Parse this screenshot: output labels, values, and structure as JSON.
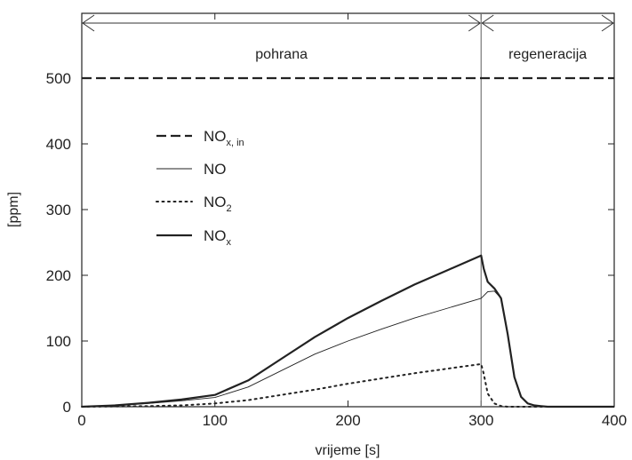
{
  "chart_data": {
    "type": "line",
    "xlabel": "vrijeme [s]",
    "ylabel": "[ppm]",
    "xlim": [
      0,
      400
    ],
    "ylim": [
      0,
      500
    ],
    "xticks": [
      0,
      100,
      200,
      300,
      400
    ],
    "yticks": [
      0,
      100,
      200,
      300,
      400,
      500
    ],
    "grid": false,
    "legend_position": "upper-left",
    "phases": [
      {
        "label": "pohrana",
        "start": 0,
        "end": 300
      },
      {
        "label": "regeneracija",
        "start": 300,
        "end": 400
      }
    ],
    "series": [
      {
        "name": "NOx, in",
        "legend_main": "NO",
        "legend_sub": "x, in",
        "style": "dashed",
        "x": [
          0,
          400
        ],
        "y": [
          500,
          500
        ]
      },
      {
        "name": "NO",
        "legend_main": "NO",
        "legend_sub": "",
        "style": "thin",
        "x": [
          0,
          25,
          50,
          75,
          100,
          125,
          150,
          175,
          200,
          225,
          250,
          275,
          300,
          305,
          310,
          315,
          320,
          325,
          330,
          335,
          340,
          345,
          350,
          360,
          400
        ],
        "y": [
          0,
          2,
          5,
          9,
          14,
          30,
          55,
          80,
          100,
          118,
          135,
          150,
          165,
          175,
          176,
          165,
          110,
          45,
          15,
          5,
          2,
          1,
          0,
          0,
          0
        ]
      },
      {
        "name": "NO2",
        "legend_main": "NO",
        "legend_sub": "2",
        "style": "dotted",
        "x": [
          0,
          50,
          75,
          100,
          125,
          150,
          175,
          200,
          225,
          250,
          275,
          300,
          302,
          305,
          310,
          315,
          320,
          400
        ],
        "y": [
          0,
          1,
          2,
          5,
          10,
          18,
          26,
          35,
          43,
          51,
          58,
          65,
          50,
          20,
          5,
          1,
          0,
          0
        ]
      },
      {
        "name": "NOx",
        "legend_main": "NO",
        "legend_sub": "x",
        "style": "thick",
        "x": [
          0,
          25,
          50,
          75,
          100,
          125,
          150,
          175,
          200,
          225,
          250,
          275,
          300,
          302,
          305,
          310,
          315,
          320,
          325,
          330,
          335,
          340,
          345,
          350,
          360,
          400
        ],
        "y": [
          0,
          2,
          6,
          11,
          18,
          40,
          73,
          106,
          135,
          161,
          186,
          208,
          230,
          210,
          190,
          180,
          165,
          110,
          45,
          15,
          5,
          2,
          1,
          0,
          0,
          0
        ]
      }
    ]
  }
}
